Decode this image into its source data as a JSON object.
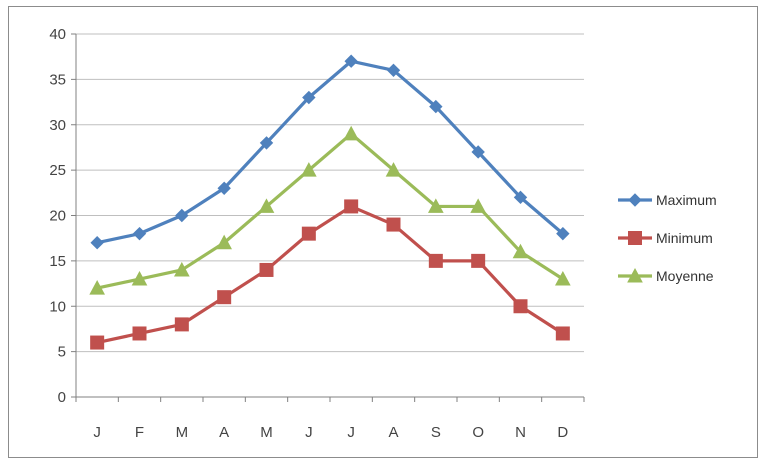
{
  "chart_data": {
    "type": "line",
    "categories": [
      "J",
      "F",
      "M",
      "A",
      "M",
      "J",
      "J",
      "A",
      "S",
      "O",
      "N",
      "D"
    ],
    "series": [
      {
        "name": "Maximum",
        "color": "#4f81bd",
        "marker": "diamond",
        "values": [
          17,
          18,
          20,
          23,
          28,
          33,
          37,
          36,
          32,
          27,
          22,
          18
        ]
      },
      {
        "name": "Minimum",
        "color": "#c0504d",
        "marker": "square",
        "values": [
          6,
          7,
          8,
          11,
          14,
          18,
          21,
          19,
          15,
          15,
          10,
          7
        ]
      },
      {
        "name": "Moyenne",
        "color": "#9bbb59",
        "marker": "triangle",
        "values": [
          12,
          13,
          14,
          17,
          21,
          25,
          29,
          25,
          21,
          21,
          16,
          13
        ]
      }
    ],
    "y_ticks": [
      "0",
      "5",
      "10",
      "15",
      "20",
      "25",
      "30",
      "35",
      "40"
    ],
    "ylim": [
      0,
      40
    ],
    "grid": "horizontal",
    "legend_position": "right"
  }
}
